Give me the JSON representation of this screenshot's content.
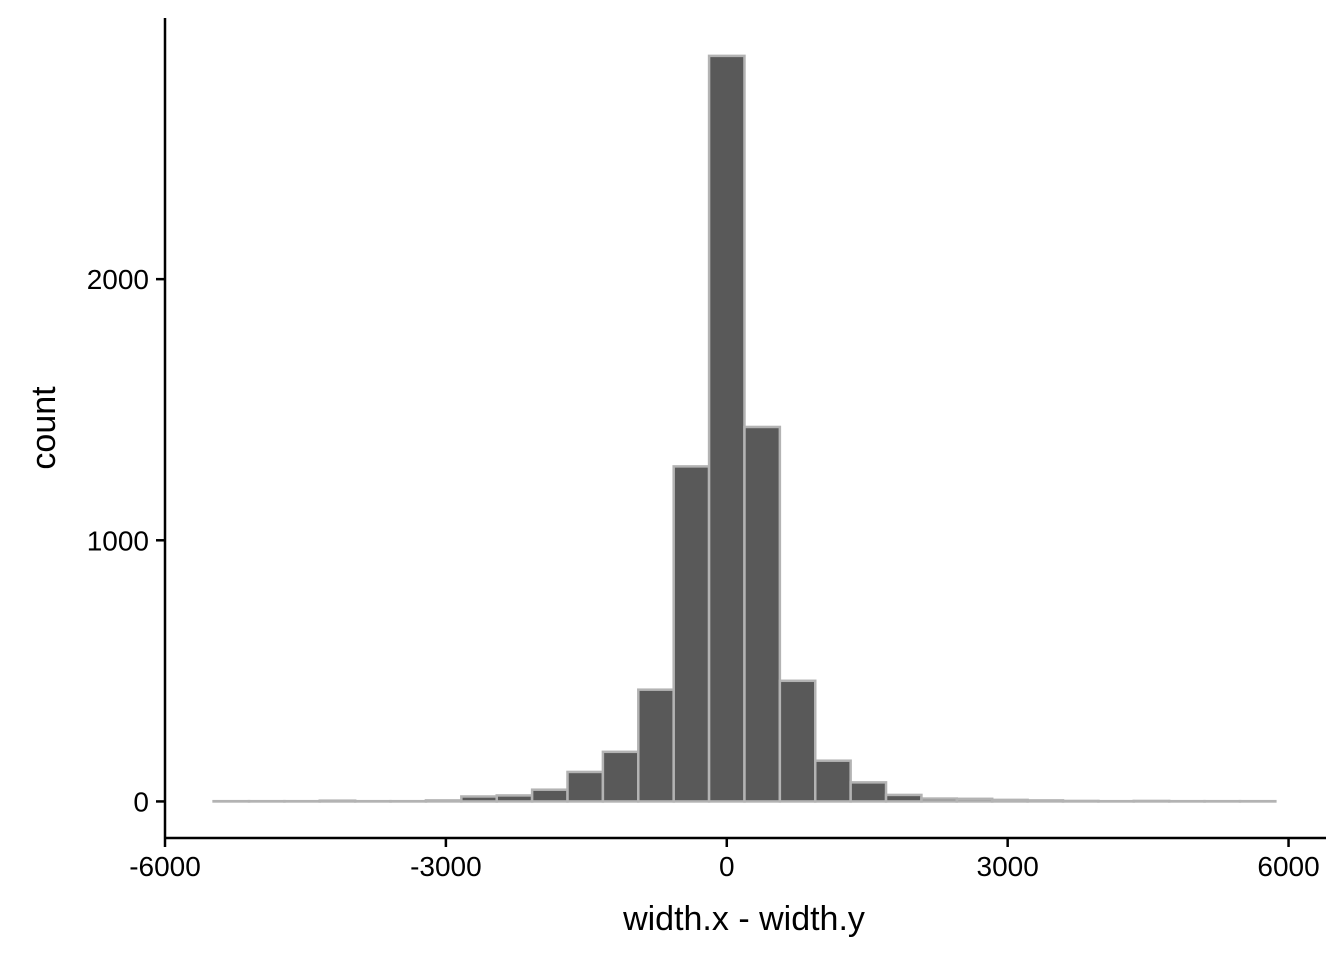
{
  "chart_data": {
    "type": "bar",
    "subtype": "histogram",
    "xlabel": "width.x - width.y",
    "ylabel": "count",
    "xlim": [
      -6000,
      6400
    ],
    "ylim": [
      -140,
      3000
    ],
    "x_ticks": [
      -6000,
      -3000,
      0,
      3000,
      6000
    ],
    "x_tick_labels": [
      "-6000",
      "-3000",
      "0",
      "3000",
      "6000"
    ],
    "y_ticks": [
      0,
      1000,
      2000
    ],
    "y_tick_labels": [
      "0",
      "1000",
      "2000"
    ],
    "bin_width": 378,
    "bin_starts": [
      -5481,
      -5103,
      -4725,
      -4347,
      -3969,
      -3591,
      -3213,
      -2835,
      -2457,
      -2079,
      -1701,
      -1323,
      -945,
      -567,
      -189,
      189,
      567,
      945,
      1323,
      1701,
      2079,
      2457,
      2835,
      3213,
      3591,
      3969,
      4347,
      4725,
      5103,
      5481
    ],
    "counts": [
      1,
      1,
      1,
      3,
      1,
      1,
      4,
      19,
      23,
      45,
      113,
      190,
      428,
      1283,
      2855,
      1434,
      462,
      156,
      73,
      25,
      11,
      10,
      6,
      4,
      2,
      1,
      2,
      1,
      1,
      1
    ],
    "grid": false,
    "legend": "none",
    "colors": {
      "bar_fill": "#595959",
      "bar_stroke": "#b3b3b3",
      "axis": "#000000",
      "background": "#ffffff"
    }
  }
}
